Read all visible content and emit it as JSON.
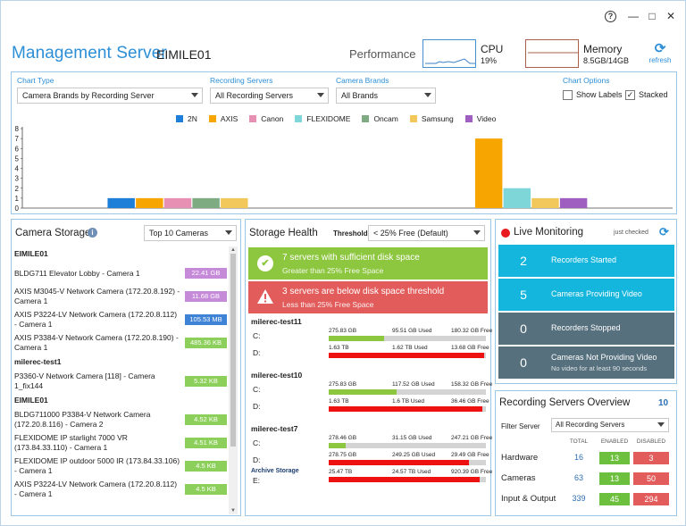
{
  "window": {
    "help": "?",
    "minimize": "—",
    "maximize": "□",
    "close": "✕"
  },
  "header": {
    "title": "Management Server",
    "server": "EIMILE01",
    "performance_label": "Performance",
    "cpu": {
      "label": "CPU",
      "value": "19%"
    },
    "memory": {
      "label": "Memory",
      "value": "8.5GB/14GB"
    },
    "refresh_label": "refresh"
  },
  "filters": {
    "chart_type": {
      "label": "Chart Type",
      "value": "Camera Brands by Recording Server"
    },
    "recording_servers": {
      "label": "Recording Servers",
      "value": "All Recording Servers"
    },
    "camera_brands": {
      "label": "Camera Brands",
      "value": "All Brands"
    },
    "chart_options": {
      "label": "Chart Options",
      "show_labels": "Show Labels",
      "show_labels_checked": false,
      "stacked": "Stacked",
      "stacked_checked": true
    }
  },
  "chart_data": {
    "type": "bar",
    "title": "",
    "xlabel": "",
    "ylabel": "",
    "ylim": [
      0,
      8
    ],
    "yticks": [
      "0",
      "1",
      "2",
      "3",
      "4",
      "5",
      "6",
      "7",
      "8"
    ],
    "grid": false,
    "legend_position": "top",
    "stacked": true,
    "groups": 23,
    "series": [
      {
        "name": "2N",
        "color": "#1e7fd9",
        "values": [
          {
            "group": 3,
            "value": 1
          }
        ]
      },
      {
        "name": "AXIS",
        "color": "#f7a500",
        "values": [
          {
            "group": 4,
            "value": 1
          },
          {
            "group": 16,
            "value": 7
          }
        ]
      },
      {
        "name": "Canon",
        "color": "#e88fb4",
        "values": [
          {
            "group": 5,
            "value": 1
          }
        ]
      },
      {
        "name": "FLEXIDOME",
        "color": "#7fd6d9",
        "values": [
          {
            "group": 17,
            "value": 2
          }
        ]
      },
      {
        "name": "Oncam",
        "color": "#7fab83",
        "values": [
          {
            "group": 6,
            "value": 1
          }
        ]
      },
      {
        "name": "Samsung",
        "color": "#f2c75c",
        "values": [
          {
            "group": 7,
            "value": 1
          },
          {
            "group": 18,
            "value": 1
          }
        ]
      },
      {
        "name": "Video",
        "color": "#9e5fc0",
        "values": [
          {
            "group": 19,
            "value": 1
          }
        ]
      }
    ]
  },
  "camera_storage": {
    "title": "Camera Storage",
    "info": "i",
    "top_select": "Top 10 Cameras",
    "rows": [
      {
        "kind": "group",
        "text": "EIMILE01"
      },
      {
        "kind": "item",
        "text": "BLDG711 Elevator Lobby - Camera 1",
        "size": "22.41 GB",
        "color": "#c58ad8"
      },
      {
        "kind": "item",
        "text": "AXIS M3045-V Network Camera (172.20.8.192) - Camera 1",
        "size": "11.68 GB",
        "color": "#c58ad8"
      },
      {
        "kind": "item",
        "text": "AXIS P3224-LV Network Camera (172.20.8.112) - Camera 1",
        "size": "105.53 MB",
        "color": "#3f83d6"
      },
      {
        "kind": "item",
        "text": "AXIS P3384-V Network Camera (172.20.8.190) - Camera 1",
        "size": "485.36 KB",
        "color": "#8ccf5a"
      },
      {
        "kind": "group",
        "text": "milerec-test1"
      },
      {
        "kind": "item",
        "text": "P3360-V Network Camera [118] - Camera 1_fix144",
        "size": "5.32 KB",
        "color": "#8ccf5a"
      },
      {
        "kind": "group",
        "text": "EIMILE01"
      },
      {
        "kind": "item",
        "text": "BLDG711000 P3384-V Network Camera (172.20.8.116) - Camera 2",
        "size": "4.52 KB",
        "color": "#8ccf5a"
      },
      {
        "kind": "item",
        "text": "FLEXIDOME IP starlight 7000 VR (173.84.33.110) - Camera 1",
        "size": "4.51 KB",
        "color": "#8ccf5a"
      },
      {
        "kind": "item",
        "text": "FLEXIDOME IP outdoor 5000 IR (173.84.33.106) - Camera 1",
        "size": "4.5 KB",
        "color": "#8ccf5a"
      },
      {
        "kind": "item",
        "text": "AXIS P3224-LV Network Camera (172.20.8.112) - Camera 1",
        "size": "4.5 KB",
        "color": "#8ccf5a"
      }
    ]
  },
  "storage_health": {
    "title": "Storage Health",
    "threshold_label": "Threshold",
    "threshold_value": "< 25% Free (Default)",
    "ok_banner": {
      "title": "7 servers with sufficient disk space",
      "sub": "Greater than 25% Free Space",
      "icon": "✔",
      "color": "#8dc63f"
    },
    "warn_banner": {
      "title": "3 servers are below disk space threshold",
      "sub": "Less than 25% Free Space",
      "icon": "!",
      "color": "#e25c5c"
    },
    "servers": [
      {
        "name": "milerec-test11",
        "drives": [
          {
            "drive": "C:",
            "total": "275.83 GB",
            "used": "95.51 GB Used",
            "free": "180.32 GB Free",
            "used_fraction": 0.35,
            "color": "#8dc63f"
          },
          {
            "drive": "D:",
            "total": "1.63 TB",
            "used": "1.62 TB Used",
            "free": "13.68 GB Free",
            "used_fraction": 0.99,
            "color": "#ee1111"
          }
        ]
      },
      {
        "name": "milerec-test10",
        "drives": [
          {
            "drive": "C:",
            "total": "275.83 GB",
            "used": "117.52 GB Used",
            "free": "158.32 GB Free",
            "used_fraction": 0.43,
            "color": "#8dc63f"
          },
          {
            "drive": "D:",
            "total": "1.63 TB",
            "used": "1.6 TB Used",
            "free": "36.46 GB Free",
            "used_fraction": 0.98,
            "color": "#ee1111"
          }
        ]
      },
      {
        "name": "milerec-test7",
        "drives": [
          {
            "drive": "C:",
            "total": "278.46 GB",
            "used": "31.15 GB Used",
            "free": "247.21 GB Free",
            "used_fraction": 0.11,
            "color": "#8dc63f"
          },
          {
            "drive": "D:",
            "total": "278.75 GB",
            "used": "249.25 GB Used",
            "free": "29.49 GB Free",
            "used_fraction": 0.89,
            "color": "#ee1111"
          },
          {
            "drive": "E:",
            "archive": "Archive Storage",
            "total": "25.47 TB",
            "used": "24.57 TB Used",
            "free": "920.39 GB Free",
            "used_fraction": 0.96,
            "color": "#ee1111"
          }
        ]
      }
    ]
  },
  "live_monitoring": {
    "title": "Live Monitoring",
    "status": "just checked",
    "tiles": [
      {
        "num": "2",
        "label": "Recorders Started",
        "sub": "",
        "color": "#14b6dd"
      },
      {
        "num": "5",
        "label": "Cameras Providing Video",
        "sub": "",
        "color": "#14b6dd"
      },
      {
        "num": "0",
        "label": "Recorders Stopped",
        "sub": "",
        "color": "#57707e"
      },
      {
        "num": "0",
        "label": "Cameras Not Providing Video",
        "sub": "No video for at least 90 seconds",
        "color": "#57707e"
      }
    ]
  },
  "recording_overview": {
    "title": "Recording Servers Overview",
    "count": "10",
    "filter_label": "Filter Server",
    "filter_value": "All Recording Servers",
    "headers": {
      "total": "TOTAL",
      "enabled": "ENABLED",
      "disabled": "DISABLED"
    },
    "rows": [
      {
        "label": "Hardware",
        "total": "16",
        "enabled": "13",
        "disabled": "3"
      },
      {
        "label": "Cameras",
        "total": "63",
        "enabled": "13",
        "disabled": "50"
      },
      {
        "label": "Input & Output",
        "total": "339",
        "enabled": "45",
        "disabled": "294"
      }
    ]
  }
}
